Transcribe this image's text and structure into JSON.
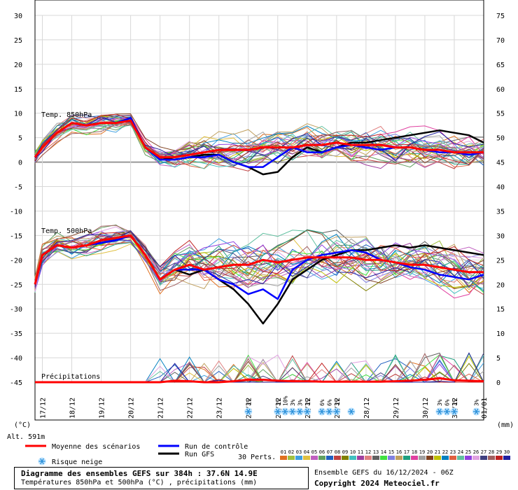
{
  "chart_data": {
    "type": "line",
    "title": "Diagramme des ensembles GEFS sur 384h : 37.6N 14.9E",
    "subtitle": "Températures 850hPa et 500hPa (°C) , précipitations (mm)",
    "run_info": "Ensemble GEFS du 16/12/2024 - 06Z",
    "copyright": "Copyright 2024 Meteociel.fr",
    "left_axis_unit": "(°C)",
    "right_axis_unit": "(mm)",
    "altitude": "Alt. 591m",
    "left_axis_ticks": [
      30,
      25,
      20,
      15,
      10,
      5,
      0,
      -5,
      -10,
      -15,
      -20,
      -25,
      -30,
      -35,
      -40,
      -45
    ],
    "right_axis_ticks": [
      75,
      70,
      65,
      60,
      55,
      50,
      45,
      40,
      35,
      30,
      25,
      20,
      15,
      10,
      5,
      0
    ],
    "ylim": [
      -45,
      30
    ],
    "x_dates": [
      "17/12",
      "18/12",
      "19/12",
      "20/12",
      "21/12",
      "22/12",
      "23/12",
      "24/12",
      "25/12",
      "26/12",
      "27/12",
      "28/12",
      "29/12",
      "30/12",
      "31/12",
      "01/01"
    ],
    "panel_labels": [
      "Temp. 850hPa",
      "Temp. 500hPa",
      "Précipitations"
    ],
    "legend": {
      "mean": "Moyenne des scénarios",
      "control": "Run de contrôle",
      "gfs": "Run GFS",
      "snow": "Risque neige",
      "perts_label": "30 Perts.",
      "perts": [
        "01",
        "02",
        "03",
        "04",
        "05",
        "06",
        "07",
        "08",
        "09",
        "10",
        "11",
        "12",
        "13",
        "14",
        "15",
        "16",
        "17",
        "18",
        "19",
        "20",
        "21",
        "22",
        "23",
        "24",
        "25",
        "26",
        "27",
        "28",
        "29",
        "30"
      ],
      "pert_colors": [
        "#e07020",
        "#a0c040",
        "#40a0e0",
        "#e0c040",
        "#c060c0",
        "#60a060",
        "#2060c0",
        "#c04040",
        "#808000",
        "#40c0c0",
        "#a040a0",
        "#e08080",
        "#606060",
        "#40e040",
        "#8080e0",
        "#c0a060",
        "#20a080",
        "#e040a0",
        "#a0a0a0",
        "#804020",
        "#c0c000",
        "#0080c0",
        "#e06040",
        "#60c0a0",
        "#9040e0",
        "#e0a0e0",
        "#404080",
        "#a06060",
        "#c02020",
        "#2020a0"
      ]
    },
    "snow_markers": [
      {
        "date": 24.0,
        "pct": "3%"
      },
      {
        "date": 25.0,
        "pct": "3%"
      },
      {
        "date": 25.25,
        "pct": "10%"
      },
      {
        "date": 25.5,
        "pct": "3%"
      },
      {
        "date": 25.75,
        "pct": "3%"
      },
      {
        "date": 26.0,
        "pct": "3%"
      },
      {
        "date": 26.5,
        "pct": "6%"
      },
      {
        "date": 26.75,
        "pct": "6%"
      },
      {
        "date": 27.0,
        "pct": "3%"
      },
      {
        "date": 27.5,
        "pct": ""
      },
      {
        "date": 30.5,
        "pct": "3%"
      },
      {
        "date": 30.75,
        "pct": "6%"
      },
      {
        "date": 31.0,
        "pct": "3%"
      },
      {
        "date": 31.75,
        "pct": "3%"
      }
    ],
    "days": [
      16.75,
      17.0,
      17.5,
      18.0,
      18.5,
      19.0,
      19.5,
      20.0,
      20.5,
      21.0,
      21.5,
      22.0,
      22.5,
      23.0,
      23.5,
      24.0,
      24.5,
      25.0,
      25.5,
      26.0,
      26.5,
      27.0,
      27.5,
      28.0,
      28.5,
      29.0,
      29.5,
      30.0,
      30.5,
      31.0,
      31.5,
      32.0
    ],
    "series_850": [
      {
        "name": "Moyenne des scénarios",
        "role": "mean",
        "values": [
          1,
          3,
          6,
          8,
          7.5,
          8,
          8,
          8.5,
          3,
          1,
          1,
          1.5,
          2,
          2.5,
          2.5,
          2.5,
          3,
          3,
          3,
          3.5,
          3.5,
          4,
          3.5,
          3.5,
          3.5,
          3,
          3,
          2.5,
          2.5,
          2,
          2,
          2
        ]
      },
      {
        "name": "Run de contrôle",
        "role": "control",
        "values": [
          1,
          3,
          6,
          8,
          7.5,
          8,
          8,
          9,
          3,
          0.5,
          0.5,
          1,
          1,
          1.5,
          0,
          -1,
          -1,
          1,
          3,
          2,
          2,
          3,
          3.5,
          3,
          2.5,
          3,
          3,
          2.5,
          2,
          2,
          1.5,
          2
        ]
      },
      {
        "name": "Run GFS",
        "role": "gfs",
        "values": [
          1,
          3,
          6,
          8,
          7.5,
          8,
          8,
          9,
          3,
          1,
          0.5,
          1,
          1.5,
          1.5,
          0,
          -1,
          -2.5,
          -2,
          1,
          3,
          2,
          3,
          4,
          4,
          4.5,
          5,
          5.5,
          6,
          6.5,
          6,
          5.5,
          4
        ]
      }
    ],
    "series_500": [
      {
        "name": "Moyenne des scénarios",
        "role": "mean",
        "values": [
          -25,
          -19,
          -17,
          -17.5,
          -17,
          -16,
          -15.5,
          -15,
          -19,
          -24,
          -22,
          -21,
          -22,
          -21.5,
          -21,
          -21,
          -20,
          -20.5,
          -20,
          -19.5,
          -19.5,
          -19.5,
          -19.5,
          -20,
          -20,
          -20.5,
          -21,
          -21,
          -21.5,
          -22,
          -22.5,
          -22.5
        ]
      },
      {
        "name": "Run de contrôle",
        "role": "control",
        "values": [
          -25,
          -19,
          -17,
          -17.5,
          -17,
          -16.5,
          -16,
          -15,
          -19,
          -24,
          -22,
          -22,
          -22,
          -24,
          -25,
          -27,
          -26,
          -28,
          -22,
          -20,
          -19,
          -18.5,
          -18,
          -18.5,
          -20,
          -20.5,
          -21.5,
          -22,
          -23,
          -23.5,
          -24,
          -23
        ]
      },
      {
        "name": "Run GFS",
        "role": "gfs",
        "values": [
          -25,
          -19,
          -17,
          -17.5,
          -17,
          -16.5,
          -16,
          -15,
          -19,
          -24,
          -22,
          -23,
          -22,
          -24,
          -26,
          -29,
          -33,
          -29,
          -24,
          -22,
          -20,
          -19,
          -18,
          -18,
          -17.5,
          -17,
          -17.5,
          -17,
          -17.5,
          -18,
          -18.5,
          -19
        ]
      }
    ],
    "precip": [
      {
        "name": "Moyenne des scénarios",
        "role": "mean",
        "values": [
          0,
          0,
          0,
          0,
          0,
          0,
          0,
          0,
          0,
          0,
          0.3,
          0.2,
          0,
          0,
          0.2,
          0.5,
          0.5,
          0.3,
          0.2,
          0.2,
          0.1,
          0.1,
          0.1,
          0.1,
          0.1,
          0.2,
          0.3,
          0.5,
          0.8,
          0.4,
          0.3,
          0.2
        ]
      }
    ]
  }
}
